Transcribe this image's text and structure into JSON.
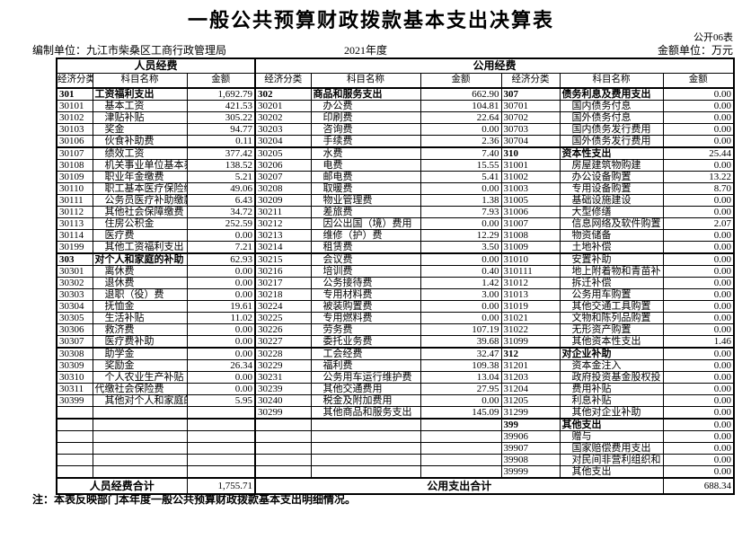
{
  "title": "一般公共预算财政拨款基本支出决算表",
  "doc_label": "公开06表",
  "meta": {
    "prepared_by": "编制单位：九江市柴桑区工商行政管理局",
    "year": "2021年度",
    "unit": "金额单位：万元"
  },
  "table": {
    "section_headers": [
      "人员经费",
      "公用经费"
    ],
    "column_headers": [
      "经济分类",
      "科目名称",
      "金额"
    ],
    "category_codes": [
      "301",
      "303",
      "302",
      "307",
      "310",
      "312",
      "399"
    ],
    "flush_name_codes": [
      "30311"
    ],
    "rows": [
      [
        "301",
        "工资福利支出",
        "1,692.79",
        "302",
        "商品和服务支出",
        "662.90",
        "307",
        "债务利息及费用支出",
        "0.00"
      ],
      [
        "30101",
        "基本工资",
        "421.53",
        "30201",
        "办公费",
        "104.81",
        "30701",
        "国内债务付息",
        "0.00"
      ],
      [
        "30102",
        "津贴补贴",
        "305.22",
        "30202",
        "印刷费",
        "22.64",
        "30702",
        "国外债务付息",
        "0.00"
      ],
      [
        "30103",
        "奖金",
        "94.77",
        "30203",
        "咨询费",
        "0.00",
        "30703",
        "国内债务发行费用",
        "0.00"
      ],
      [
        "30106",
        "伙食补助费",
        "0.11",
        "30204",
        "手续费",
        "2.36",
        "30704",
        "国外债务发行费用",
        "0.00"
      ],
      [
        "30107",
        "绩效工资",
        "377.42",
        "30205",
        "水费",
        "7.40",
        "310",
        "资本性支出",
        "25.44"
      ],
      [
        "30108",
        "机关事业单位基本养",
        "138.52",
        "30206",
        "电费",
        "15.55",
        "31001",
        "房屋建筑物购建",
        "0.00"
      ],
      [
        "30109",
        "职业年金缴费",
        "5.21",
        "30207",
        "邮电费",
        "5.41",
        "31002",
        "办公设备购置",
        "13.22"
      ],
      [
        "30110",
        "职工基本医疗保险缴",
        "49.06",
        "30208",
        "取暖费",
        "0.00",
        "31003",
        "专用设备购置",
        "8.70"
      ],
      [
        "30111",
        "公务员医疗补助缴款",
        "6.43",
        "30209",
        "物业管理费",
        "1.38",
        "31005",
        "基础设施建设",
        "0.00"
      ],
      [
        "30112",
        "其他社会保障缴费",
        "34.72",
        "30211",
        "差旅费",
        "7.93",
        "31006",
        "大型修缮",
        "0.00"
      ],
      [
        "30113",
        "住房公积金",
        "252.59",
        "30212",
        "因公出国（境）费用",
        "0.00",
        "31007",
        "信息网络及软件购置",
        "2.07"
      ],
      [
        "30114",
        "医疗费",
        "0.00",
        "30213",
        "维修（护）费",
        "12.29",
        "31008",
        "物资储备",
        "0.00"
      ],
      [
        "30199",
        "其他工资福利支出",
        "7.21",
        "30214",
        "租赁费",
        "3.50",
        "31009",
        "土地补偿",
        "0.00"
      ],
      [
        "303",
        "对个人和家庭的补助",
        "62.93",
        "30215",
        "会议费",
        "0.00",
        "31010",
        "安置补助",
        "0.00"
      ],
      [
        "30301",
        "离休费",
        "0.00",
        "30216",
        "培训费",
        "0.40",
        "310111",
        "地上附着物和青苗补",
        "0.00"
      ],
      [
        "30302",
        "退休费",
        "0.00",
        "30217",
        "公务接待费",
        "1.42",
        "31012",
        "拆迁补偿",
        "0.00"
      ],
      [
        "30303",
        "退职（役）费",
        "0.00",
        "30218",
        "专用材料费",
        "3.00",
        "31013",
        "公务用车购置",
        "0.00"
      ],
      [
        "30304",
        "抚恤金",
        "19.61",
        "30224",
        "被装购置费",
        "0.00",
        "31019",
        "其他交通工具购置",
        "0.00"
      ],
      [
        "30305",
        "生活补贴",
        "11.02",
        "30225",
        "专用燃料费",
        "0.00",
        "31021",
        "文物和陈列品购置",
        "0.00"
      ],
      [
        "30306",
        "救济费",
        "0.00",
        "30226",
        "劳务费",
        "107.19",
        "31022",
        "无形资产购置",
        "0.00"
      ],
      [
        "30307",
        "医疗费补助",
        "0.00",
        "30227",
        "委托业务费",
        "39.68",
        "31099",
        "其他资本性支出",
        "1.46"
      ],
      [
        "30308",
        "助学金",
        "0.00",
        "30228",
        "工会经费",
        "32.47",
        "312",
        "对企业补助",
        "0.00"
      ],
      [
        "30309",
        "奖励金",
        "26.34",
        "30229",
        "福利费",
        "109.38",
        "31201",
        "资本金注入",
        "0.00"
      ],
      [
        "30310",
        "个人农业生产补贴",
        "0.00",
        "30231",
        "公务用车运行维护费",
        "13.04",
        "31203",
        "政府投资基金股权投",
        "0.00"
      ],
      [
        "30311",
        "代缴社会保险费",
        "0.00",
        "30239",
        "其他交通费用",
        "27.95",
        "31204",
        "费用补贴",
        "0.00"
      ],
      [
        "30399",
        "其他对个人和家庭的",
        "5.95",
        "30240",
        "税金及附加费用",
        "0.00",
        "31205",
        "利息补贴",
        "0.00"
      ],
      [
        "",
        "",
        "",
        "30299",
        "其他商品和服务支出",
        "145.09",
        "31299",
        "其他对企业补助",
        "0.00"
      ],
      [
        "",
        "",
        "",
        "",
        "",
        "",
        "399",
        "其他支出",
        "0.00"
      ],
      [
        "",
        "",
        "",
        "",
        "",
        "",
        "39906",
        "赠与",
        "0.00"
      ],
      [
        "",
        "",
        "",
        "",
        "",
        "",
        "39907",
        "国家赔偿费用支出",
        "0.00"
      ],
      [
        "",
        "",
        "",
        "",
        "",
        "",
        "39908",
        "对民间非营利组织和",
        "0.00"
      ],
      [
        "",
        "",
        "",
        "",
        "",
        "",
        "39999",
        "其他支出",
        "0.00"
      ]
    ],
    "totals": {
      "personnel_label": "人员经费合计",
      "personnel_amount": "1,755.71",
      "public_label": "公用支出合计",
      "public_amount": "688.34"
    }
  },
  "note": "注：本表反映部门本年度一般公共预算财政拨款基本支出明细情况。"
}
